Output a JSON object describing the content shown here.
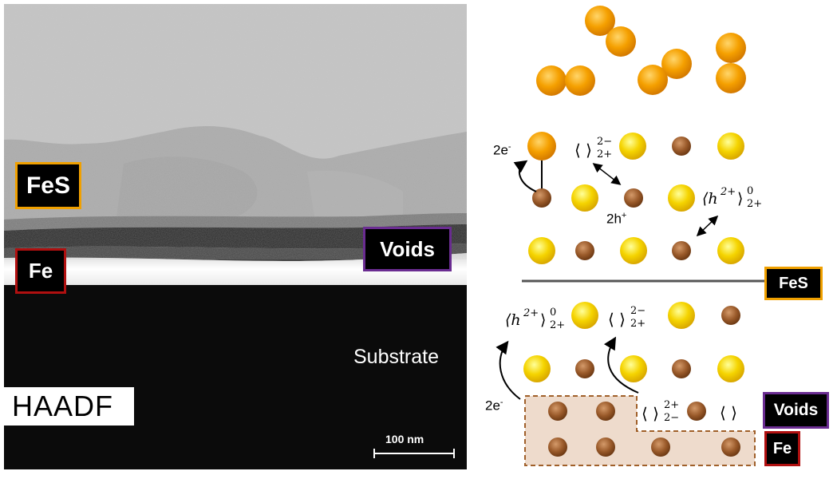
{
  "micrograph": {
    "labels": {
      "fes": "FeS",
      "fe": "Fe",
      "voids": "Voids",
      "substrate": "Substrate",
      "haadf": "HAADF",
      "scalebar": "100 nm"
    },
    "colors": {
      "fes_border": "#f0a000",
      "fe_border": "#b01010",
      "voids_border": "#6a2c91"
    }
  },
  "schematic": {
    "labels": {
      "fes": "FeS",
      "voids": "Voids",
      "fe": "Fe"
    },
    "annotations": {
      "electrons_top": "2e",
      "electrons_top_sup": "-",
      "electrons_bottom": "2e",
      "electrons_bottom_sup": "-",
      "holes": "2h",
      "holes_sup": "+",
      "vac_s_1": "⟨ ⟩",
      "vac_s_1_sup": "2−",
      "vac_s_1_sub": "2+",
      "hole_def_1": "⟨h",
      "hole_def_1_sup": "2+",
      "hole_def_1_close": "⟩",
      "hole_def_1_sup0": "0",
      "hole_def_1_sub": "2+",
      "hole_def_2": "⟨h",
      "hole_def_2_sup": "2+",
      "hole_def_2_close": "⟩",
      "hole_def_2_sup0": "0",
      "hole_def_2_sub": "2+",
      "vac_s_2": "⟨ ⟩",
      "vac_s_2_sup": "2−",
      "vac_s_2_sub": "2+",
      "vac_fe": "⟨ ⟩",
      "vac_fe_sup": "2+",
      "vac_fe_sub": "2−",
      "vac_empty": "⟨ ⟩"
    },
    "colors": {
      "sulfur": "#f5d400",
      "sulfur_gas": "#f5a000",
      "iron": "#9a5a2a",
      "fe_region": "#eedbcc",
      "fe_region_border": "#a0602a"
    }
  }
}
